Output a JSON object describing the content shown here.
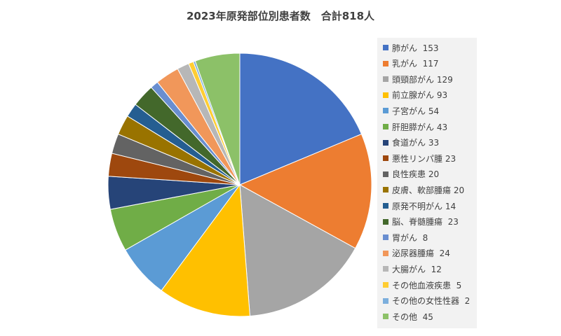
{
  "chart_data": {
    "type": "pie",
    "title": "2023年原発部位別患者数　合計818人",
    "legend_position": "right",
    "slices": [
      {
        "name": "肺がん",
        "value": 153,
        "label": "肺がん  153",
        "color": "#4472C4"
      },
      {
        "name": "乳がん",
        "value": 117,
        "label": "乳がん  117",
        "color": "#ED7D31"
      },
      {
        "name": "頭頸部がん",
        "value": 129,
        "label": "頭頸部がん 129",
        "color": "#A5A5A5"
      },
      {
        "name": "前立腺がん",
        "value": 93,
        "label": "前立腺がん 93",
        "color": "#FFC000"
      },
      {
        "name": "子宮がん",
        "value": 54,
        "label": "子宮がん 54",
        "color": "#5B9BD5"
      },
      {
        "name": "肝胆膵がん",
        "value": 43,
        "label": "肝胆膵がん 43",
        "color": "#70AD47"
      },
      {
        "name": "食道がん",
        "value": 33,
        "label": "食道がん 33",
        "color": "#264478"
      },
      {
        "name": "悪性リンパ腫",
        "value": 23,
        "label": "悪性リンパ腫 23",
        "color": "#9E480E"
      },
      {
        "name": "良性疾患",
        "value": 20,
        "label": "良性疾患 20",
        "color": "#636363"
      },
      {
        "name": "皮膚、軟部腫瘍",
        "value": 20,
        "label": "皮膚、軟部腫瘍 20",
        "color": "#997300"
      },
      {
        "name": "原発不明がん",
        "value": 14,
        "label": "原発不明がん 14",
        "color": "#255E91"
      },
      {
        "name": "脳、脊髄腫瘍",
        "value": 23,
        "label": "脳、脊髄腫瘍  23",
        "color": "#43682B"
      },
      {
        "name": "胃がん",
        "value": 8,
        "label": "胃がん  8",
        "color": "#698ED0"
      },
      {
        "name": "泌尿器腫瘍",
        "value": 24,
        "label": "泌尿器腫瘍  24",
        "color": "#F1975A"
      },
      {
        "name": "大腸がん",
        "value": 12,
        "label": "大腸がん  12",
        "color": "#B7B7B7"
      },
      {
        "name": "その他血液疾患",
        "value": 5,
        "label": "その他血液疾患  5",
        "color": "#FFCD33"
      },
      {
        "name": "その他の女性性器",
        "value": 2,
        "label": "その他の女性性器  2",
        "color": "#7CAFDD"
      },
      {
        "name": "その他",
        "value": 45,
        "label": "その他  45",
        "color": "#8CC168"
      }
    ]
  }
}
